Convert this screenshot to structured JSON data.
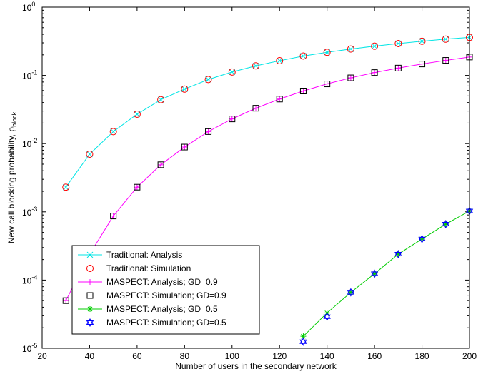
{
  "chart_data": {
    "type": "line",
    "title": "",
    "xlabel": "Number of users in the secondary network",
    "ylabel": "New call blocking probability, p",
    "ylabel_subscript": "block",
    "xlim": [
      20,
      200
    ],
    "ylim": [
      1e-05,
      1
    ],
    "y_scale": "log",
    "grid": false,
    "legend_position": "lower-left",
    "x_ticks": [
      20,
      40,
      60,
      80,
      100,
      120,
      140,
      160,
      180,
      200
    ],
    "y_tick_labels": [
      {
        "base": "10",
        "exp": "0"
      },
      {
        "base": "10",
        "exp": "-1"
      },
      {
        "base": "10",
        "exp": "-2"
      },
      {
        "base": "10",
        "exp": "-3"
      },
      {
        "base": "10",
        "exp": "-4"
      },
      {
        "base": "10",
        "exp": "-5"
      }
    ],
    "series": [
      {
        "name": "Traditional: Analysis",
        "color": "#00e5e5",
        "style": "line",
        "marker": "x",
        "x": [
          30,
          40,
          50,
          60,
          70,
          80,
          90,
          100,
          110,
          120,
          130,
          140,
          150,
          160,
          170,
          180,
          190,
          200
        ],
        "y": [
          0.0023,
          0.007,
          0.015,
          0.027,
          0.044,
          0.063,
          0.087,
          0.112,
          0.138,
          0.164,
          0.192,
          0.218,
          0.244,
          0.268,
          0.293,
          0.317,
          0.34,
          0.36
        ]
      },
      {
        "name": "Traditional: Simulation",
        "color": "#ff0000",
        "style": "marker",
        "marker": "circle",
        "x": [
          30,
          40,
          50,
          60,
          70,
          80,
          90,
          100,
          110,
          120,
          130,
          140,
          150,
          160,
          170,
          180,
          190,
          200
        ],
        "y": [
          0.0023,
          0.007,
          0.015,
          0.027,
          0.044,
          0.063,
          0.087,
          0.112,
          0.138,
          0.164,
          0.192,
          0.218,
          0.244,
          0.268,
          0.293,
          0.317,
          0.34,
          0.36
        ]
      },
      {
        "name": "MASPECT: Analysis; GD=0.9",
        "color": "#ff00ff",
        "style": "line",
        "marker": "plus",
        "x": [
          30,
          40,
          50,
          60,
          70,
          80,
          90,
          100,
          110,
          120,
          130,
          140,
          150,
          160,
          170,
          180,
          190,
          200
        ],
        "y": [
          5e-05,
          0.00024,
          0.00087,
          0.0023,
          0.0049,
          0.0089,
          0.015,
          0.023,
          0.033,
          0.045,
          0.059,
          0.075,
          0.092,
          0.11,
          0.128,
          0.147,
          0.166,
          0.186
        ]
      },
      {
        "name": "MASPECT: Simulation; GD=0.9",
        "color": "#000000",
        "style": "marker",
        "marker": "square",
        "x": [
          30,
          50,
          60,
          70,
          80,
          90,
          100,
          110,
          120,
          130,
          140,
          150,
          160,
          170,
          180,
          190,
          200
        ],
        "y": [
          5e-05,
          0.00087,
          0.0023,
          0.0049,
          0.0089,
          0.015,
          0.023,
          0.033,
          0.045,
          0.059,
          0.075,
          0.092,
          0.11,
          0.128,
          0.147,
          0.166,
          0.186
        ]
      },
      {
        "name": "MASPECT: Analysis; GD=0.5",
        "color": "#00cc00",
        "style": "line",
        "marker": "star",
        "x": [
          130,
          140,
          150,
          160,
          170,
          180,
          190,
          200
        ],
        "y": [
          1.5e-05,
          3.3e-05,
          6.6e-05,
          0.000124,
          0.00024,
          0.0004,
          0.00066,
          0.00103
        ]
      },
      {
        "name": "MASPECT: Simulation; GD=0.5",
        "color": "#0000ff",
        "style": "marker",
        "marker": "hexagram",
        "x": [
          130,
          140,
          150,
          160,
          170,
          180,
          190,
          200
        ],
        "y": [
          1.25e-05,
          2.9e-05,
          6.6e-05,
          0.000124,
          0.00024,
          0.0004,
          0.00066,
          0.00103
        ]
      }
    ]
  }
}
